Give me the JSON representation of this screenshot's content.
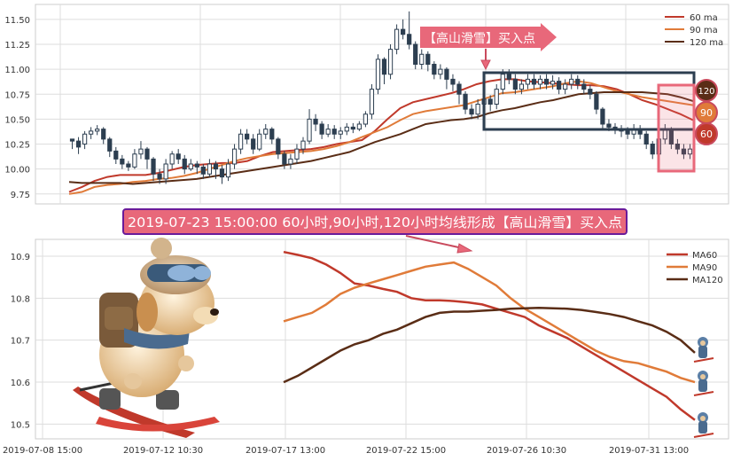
{
  "top_panel": {
    "annotation": "【高山滑雪】买入点",
    "badges": [
      "120",
      "90",
      "60"
    ]
  },
  "banner": {
    "text": "2019-07-23 15:00:00 60小时,90小时,120小时均线形成【高山滑雪】买入点"
  },
  "colors": {
    "ma60": "#c0392b",
    "ma90": "#e07b39",
    "ma120": "#5a2d16",
    "candle": "#2c3e50",
    "annotation_bg": "#e8687a",
    "banner_bg": "#e8687a",
    "banner_border": "#6a1b9a",
    "box": "#2c3e50",
    "pink_box": "#e8687a",
    "grid": "#dddddd"
  },
  "chart_data": [
    {
      "type": "candlestick",
      "ylim": [
        9.65,
        11.65
      ],
      "yticks": [
        "9.75",
        "10.00",
        "10.25",
        "10.50",
        "10.75",
        "11.00",
        "11.25",
        "11.50"
      ],
      "legend": [
        "60 ma",
        "90 ma",
        "120 ma"
      ],
      "legend_position": "top-right",
      "grid": true,
      "candles": [
        [
          10.3,
          10.28,
          10.3,
          10.2
        ],
        [
          10.28,
          10.22,
          10.32,
          10.15
        ],
        [
          10.25,
          10.35,
          10.38,
          10.2
        ],
        [
          10.35,
          10.38,
          10.42,
          10.3
        ],
        [
          10.38,
          10.4,
          10.44,
          10.34
        ],
        [
          10.4,
          10.3,
          10.42,
          10.25
        ],
        [
          10.3,
          10.18,
          10.32,
          10.12
        ],
        [
          10.18,
          10.1,
          10.22,
          10.05
        ],
        [
          10.1,
          10.05,
          10.14,
          10.0
        ],
        [
          10.05,
          10.02,
          10.08,
          9.98
        ],
        [
          10.02,
          10.15,
          10.2,
          10.0
        ],
        [
          10.15,
          10.2,
          10.28,
          10.1
        ],
        [
          10.2,
          10.1,
          10.22,
          10.0
        ],
        [
          10.1,
          9.95,
          10.12,
          9.88
        ],
        [
          9.95,
          9.9,
          10.0,
          9.85
        ],
        [
          9.9,
          10.05,
          10.1,
          9.85
        ],
        [
          10.05,
          10.15,
          10.18,
          10.0
        ],
        [
          10.15,
          10.1,
          10.2,
          10.05
        ],
        [
          10.1,
          10.0,
          10.14,
          9.95
        ],
        [
          10.0,
          10.05,
          10.1,
          9.98
        ],
        [
          10.05,
          10.02,
          10.08,
          9.95
        ],
        [
          10.02,
          9.95,
          10.05,
          9.9
        ],
        [
          9.95,
          10.05,
          10.1,
          9.92
        ],
        [
          10.05,
          10.0,
          10.08,
          9.9
        ],
        [
          10.0,
          9.92,
          10.04,
          9.85
        ],
        [
          9.92,
          10.05,
          10.1,
          9.88
        ],
        [
          10.05,
          10.2,
          10.25,
          10.0
        ],
        [
          10.2,
          10.35,
          10.4,
          10.15
        ],
        [
          10.35,
          10.3,
          10.4,
          10.25
        ],
        [
          10.3,
          10.2,
          10.35,
          10.15
        ],
        [
          10.2,
          10.35,
          10.4,
          10.18
        ],
        [
          10.35,
          10.4,
          10.45,
          10.3
        ],
        [
          10.4,
          10.3,
          10.42,
          10.25
        ],
        [
          10.3,
          10.15,
          10.32,
          10.1
        ],
        [
          10.15,
          10.05,
          10.18,
          10.0
        ],
        [
          10.05,
          10.1,
          10.15,
          10.0
        ],
        [
          10.1,
          10.2,
          10.25,
          10.05
        ],
        [
          10.2,
          10.28,
          10.32,
          10.15
        ],
        [
          10.28,
          10.5,
          10.6,
          10.25
        ],
        [
          10.5,
          10.45,
          10.55,
          10.38
        ],
        [
          10.45,
          10.35,
          10.48,
          10.3
        ],
        [
          10.35,
          10.4,
          10.45,
          10.32
        ],
        [
          10.4,
          10.35,
          10.44,
          10.3
        ],
        [
          10.35,
          10.38,
          10.42,
          10.3
        ],
        [
          10.38,
          10.42,
          10.46,
          10.34
        ],
        [
          10.42,
          10.4,
          10.46,
          10.36
        ],
        [
          10.4,
          10.45,
          10.48,
          10.38
        ],
        [
          10.45,
          10.55,
          10.58,
          10.42
        ],
        [
          10.55,
          10.8,
          10.85,
          10.5
        ],
        [
          10.8,
          11.1,
          11.15,
          10.75
        ],
        [
          11.1,
          10.95,
          11.12,
          10.85
        ],
        [
          10.95,
          11.2,
          11.25,
          10.9
        ],
        [
          11.2,
          11.4,
          11.45,
          11.15
        ],
        [
          11.4,
          11.35,
          11.5,
          11.3
        ],
        [
          11.35,
          11.25,
          11.58,
          11.2
        ],
        [
          11.25,
          11.05,
          11.28,
          11.0
        ],
        [
          11.05,
          11.15,
          11.2,
          11.0
        ],
        [
          11.15,
          11.05,
          11.18,
          10.98
        ],
        [
          11.05,
          10.95,
          11.08,
          10.9
        ],
        [
          10.95,
          11.0,
          11.05,
          10.9
        ],
        [
          11.0,
          10.9,
          11.02,
          10.8
        ],
        [
          10.9,
          10.85,
          10.95,
          10.78
        ],
        [
          10.85,
          10.75,
          10.88,
          10.65
        ],
        [
          10.75,
          10.6,
          10.78,
          10.55
        ],
        [
          10.6,
          10.55,
          10.65,
          10.5
        ],
        [
          10.55,
          10.65,
          10.7,
          10.5
        ],
        [
          10.65,
          10.7,
          10.75,
          10.6
        ],
        [
          10.7,
          10.65,
          10.74,
          10.58
        ],
        [
          10.65,
          10.8,
          10.85,
          10.6
        ],
        [
          10.8,
          10.95,
          11.0,
          10.75
        ],
        [
          10.95,
          10.9,
          11.0,
          10.85
        ],
        [
          10.9,
          10.8,
          10.95,
          10.75
        ],
        [
          10.8,
          10.85,
          10.9,
          10.75
        ],
        [
          10.85,
          10.9,
          10.95,
          10.8
        ],
        [
          10.9,
          10.85,
          10.95,
          10.8
        ],
        [
          10.85,
          10.9,
          10.94,
          10.8
        ],
        [
          10.9,
          10.85,
          10.95,
          10.8
        ],
        [
          10.85,
          10.88,
          10.94,
          10.8
        ],
        [
          10.88,
          10.8,
          10.92,
          10.75
        ],
        [
          10.8,
          10.85,
          10.9,
          10.75
        ],
        [
          10.85,
          10.9,
          10.95,
          10.8
        ],
        [
          10.9,
          10.85,
          10.94,
          10.8
        ],
        [
          10.85,
          10.8,
          10.9,
          10.75
        ],
        [
          10.8,
          10.75,
          10.84,
          10.7
        ],
        [
          10.75,
          10.6,
          10.78,
          10.55
        ],
        [
          10.6,
          10.45,
          10.62,
          10.4
        ],
        [
          10.45,
          10.42,
          10.5,
          10.38
        ],
        [
          10.42,
          10.4,
          10.46,
          10.35
        ],
        [
          10.4,
          10.38,
          10.44,
          10.32
        ],
        [
          10.38,
          10.35,
          10.42,
          10.3
        ],
        [
          10.35,
          10.4,
          10.45,
          10.3
        ],
        [
          10.4,
          10.35,
          10.44,
          10.3
        ],
        [
          10.35,
          10.25,
          10.38,
          10.2
        ],
        [
          10.25,
          10.15,
          10.28,
          10.1
        ],
        [
          10.15,
          10.3,
          10.35,
          10.1
        ],
        [
          10.3,
          10.4,
          10.45,
          10.25
        ],
        [
          10.4,
          10.25,
          10.42,
          10.2
        ],
        [
          10.25,
          10.2,
          10.3,
          10.15
        ],
        [
          10.2,
          10.15,
          10.25,
          10.1
        ],
        [
          10.15,
          10.2,
          10.25,
          10.1
        ]
      ],
      "series": [
        {
          "name": "60 ma",
          "values": [
            9.77,
            9.82,
            9.88,
            9.92,
            9.94,
            9.94,
            9.94,
            9.96,
            9.99,
            10.02,
            10.04,
            10.05,
            10.06,
            10.06,
            10.08,
            10.13,
            10.17,
            10.18,
            10.19,
            10.2,
            10.22,
            10.25,
            10.27,
            10.29,
            10.38,
            10.5,
            10.61,
            10.67,
            10.7,
            10.73,
            10.76,
            10.8,
            10.85,
            10.88,
            10.9,
            10.9,
            10.88,
            10.87,
            10.86,
            10.85,
            10.84,
            10.84,
            10.83,
            10.8,
            10.75,
            10.69,
            10.65,
            10.6,
            10.55,
            10.49
          ]
        },
        {
          "name": "90 ma",
          "values": [
            9.75,
            9.77,
            9.82,
            9.84,
            9.85,
            9.87,
            9.88,
            9.9,
            9.91,
            9.93,
            9.96,
            10.0,
            10.04,
            10.08,
            10.11,
            10.13,
            10.15,
            10.16,
            10.17,
            10.18,
            10.2,
            10.23,
            10.27,
            10.32,
            10.37,
            10.42,
            10.49,
            10.55,
            10.58,
            10.6,
            10.62,
            10.64,
            10.68,
            10.72,
            10.76,
            10.77,
            10.79,
            10.81,
            10.83,
            10.86,
            10.88,
            10.86,
            10.82,
            10.78,
            10.75,
            10.72,
            10.7,
            10.68,
            10.66,
            10.64
          ]
        },
        {
          "name": "120 ma",
          "values": [
            9.87,
            9.86,
            9.86,
            9.86,
            9.86,
            9.85,
            9.86,
            9.87,
            9.88,
            9.89,
            9.9,
            9.92,
            9.94,
            9.96,
            9.98,
            10.0,
            10.02,
            10.04,
            10.06,
            10.08,
            10.11,
            10.14,
            10.17,
            10.22,
            10.27,
            10.31,
            10.35,
            10.4,
            10.45,
            10.47,
            10.49,
            10.5,
            10.52,
            10.56,
            10.59,
            10.61,
            10.64,
            10.67,
            10.69,
            10.72,
            10.75,
            10.76,
            10.77,
            10.77,
            10.77,
            10.77,
            10.76,
            10.75,
            10.72,
            10.68
          ]
        }
      ]
    },
    {
      "type": "line",
      "ylim": [
        10.465,
        10.94
      ],
      "yticks": [
        "10.5",
        "10.6",
        "10.7",
        "10.8",
        "10.9"
      ],
      "xticks": [
        "2019-07-08 15:00",
        "2019-07-12 10:30",
        "2019-07-17 13:00",
        "2019-07-22 15:00",
        "2019-07-26 10:30",
        "2019-07-31 13:00"
      ],
      "legend": [
        "MA60",
        "MA90",
        "MA120"
      ],
      "legend_position": "top-right",
      "grid": true,
      "x_index_range": [
        0,
        36
      ],
      "series": [
        {
          "name": "MA60",
          "start": 12,
          "values": [
            10.91,
            10.903,
            10.895,
            10.88,
            10.86,
            10.835,
            10.83,
            10.822,
            10.815,
            10.8,
            10.795,
            10.795,
            10.793,
            10.79,
            10.785,
            10.775,
            10.765,
            10.755,
            10.735,
            10.72,
            10.705,
            10.685,
            10.665,
            10.645,
            10.625,
            10.605,
            10.585,
            10.565,
            10.535,
            10.51
          ]
        },
        {
          "name": "MA90",
          "start": 12,
          "values": [
            10.745,
            10.755,
            10.765,
            10.785,
            10.81,
            10.825,
            10.835,
            10.845,
            10.855,
            10.865,
            10.875,
            10.88,
            10.885,
            10.87,
            10.85,
            10.83,
            10.8,
            10.775,
            10.755,
            10.735,
            10.715,
            10.695,
            10.675,
            10.66,
            10.65,
            10.645,
            10.635,
            10.625,
            10.61,
            10.6
          ]
        },
        {
          "name": "MA120",
          "start": 12,
          "values": [
            10.6,
            10.615,
            10.635,
            10.655,
            10.675,
            10.69,
            10.7,
            10.715,
            10.725,
            10.74,
            10.755,
            10.765,
            10.768,
            10.768,
            10.77,
            10.772,
            10.775,
            10.776,
            10.777,
            10.776,
            10.775,
            10.772,
            10.767,
            10.762,
            10.755,
            10.745,
            10.735,
            10.72,
            10.7,
            10.67
          ]
        }
      ]
    }
  ]
}
